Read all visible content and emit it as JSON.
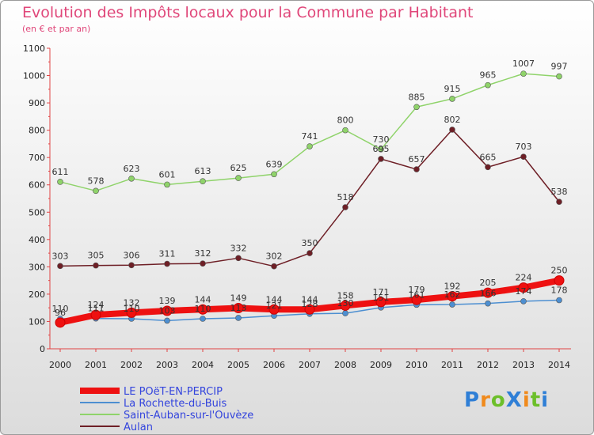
{
  "header": {
    "title": "Evolution des Impôts locaux pour la Commune par Habitant",
    "subtitle": "(en € et par an)"
  },
  "logo": {
    "text": "ProXiti",
    "colors": [
      "#2f7fd6",
      "#f08a1c",
      "#6cbf2a",
      "#2f7fd6",
      "#f08a1c",
      "#6cbf2a",
      "#2f7fd6"
    ]
  },
  "chart_data": {
    "type": "line",
    "title": "Evolution des Impôts locaux pour la Commune par Habitant",
    "subtitle": "(en € et par an)",
    "x": [
      "2000",
      "2001",
      "2002",
      "2003",
      "2004",
      "2005",
      "2006",
      "2007",
      "2008",
      "2009",
      "2010",
      "2011",
      "2012",
      "2013",
      "2014"
    ],
    "ylim": [
      0,
      1100
    ],
    "yticks": [
      0,
      100,
      200,
      300,
      400,
      500,
      600,
      700,
      800,
      900,
      1000,
      1100
    ],
    "grid": false,
    "legend_position": "bottom-left",
    "series": [
      {
        "name": "LE POëT-EN-PERCIP",
        "color": "#ee1111",
        "values": [
          96,
          124,
          132,
          139,
          144,
          149,
          144,
          144,
          158,
          171,
          179,
          192,
          205,
          224,
          250
        ],
        "labels": [
          "96",
          "124",
          "132",
          "139",
          "144",
          "149",
          "144",
          "144",
          "158",
          "171",
          "179",
          "192",
          "205",
          "224",
          "250"
        ]
      },
      {
        "name": "La Rochette-du-Buis",
        "color": "#4d8fd1",
        "values": [
          110,
          111,
          110,
          103,
          110,
          113,
          121,
          128,
          130,
          151,
          161,
          162,
          166,
          174,
          178
        ],
        "labels": [
          "110",
          "111",
          "110",
          "103",
          "110",
          "113",
          "121",
          "128",
          "130",
          "151",
          "161",
          "162",
          "166",
          "174",
          "178"
        ]
      },
      {
        "name": "Saint-Auban-sur-l'Ouvèze",
        "color": "#8fd36a",
        "values": [
          611,
          578,
          623,
          601,
          613,
          625,
          639,
          741,
          800,
          730,
          885,
          915,
          965,
          1007,
          997
        ],
        "labels": [
          "611",
          "578",
          "623",
          "601",
          "613",
          "625",
          "639",
          "741",
          "800",
          "730",
          "885",
          "915",
          "965",
          "1007",
          "997"
        ]
      },
      {
        "name": "Aulan",
        "color": "#6e1f26",
        "values": [
          303,
          305,
          306,
          311,
          312,
          332,
          302,
          350,
          518,
          695,
          657,
          802,
          665,
          703,
          538
        ],
        "labels": [
          "303",
          "305",
          "306",
          "311",
          "312",
          "332",
          "302",
          "350",
          "518",
          "695",
          "657",
          "802",
          "665",
          "703",
          "538"
        ]
      }
    ]
  }
}
